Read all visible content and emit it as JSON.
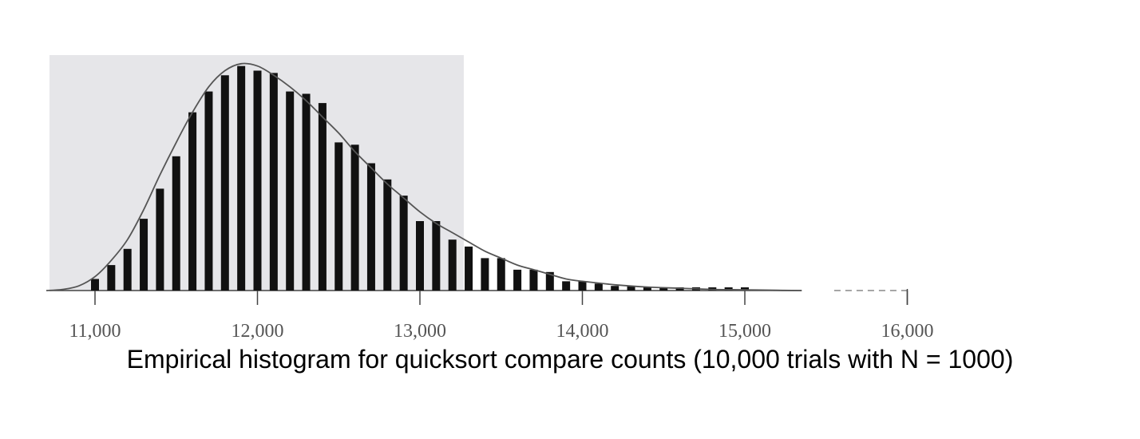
{
  "colors": {
    "highlight": "#e6e6e9",
    "bar": "#111111",
    "curve": "#555555",
    "axis": "#444444"
  },
  "chart_data": {
    "type": "bar",
    "xlabel": "",
    "ylabel": "",
    "xlim": [
      10750,
      16000
    ],
    "ylim": [
      0,
      100
    ],
    "xticks": [
      11000,
      12000,
      13000,
      14000,
      15000,
      16000
    ],
    "tick_labels": [
      "11,000",
      "12,000",
      "13,000",
      "14,000",
      "15,000",
      "16,000"
    ],
    "highlight_range": [
      10700,
      13270
    ],
    "bin_width": 100,
    "x": [
      11000,
      11100,
      11200,
      11300,
      11400,
      11500,
      11600,
      11700,
      11800,
      11900,
      12000,
      12100,
      12200,
      12300,
      12400,
      12500,
      12600,
      12700,
      12800,
      12900,
      13000,
      13100,
      13200,
      13300,
      13400,
      13500,
      13600,
      13700,
      13800,
      13900,
      14000,
      14100,
      14200,
      14300,
      14400,
      14500,
      14600,
      14700,
      14800,
      14900,
      15000
    ],
    "values": [
      5,
      11,
      18,
      31,
      44,
      58,
      77,
      86,
      93,
      97,
      95,
      94,
      86,
      85,
      81,
      64,
      63,
      55,
      48,
      41,
      30,
      30,
      22,
      19,
      14,
      14,
      9,
      9,
      8,
      4,
      4,
      3,
      2,
      2,
      1.5,
      1,
      1,
      0.5,
      0.5,
      0.5,
      0.5
    ],
    "curve": {
      "x": [
        10700,
        10800,
        10900,
        11000,
        11100,
        11200,
        11300,
        11400,
        11500,
        11600,
        11700,
        11800,
        11900,
        12000,
        12100,
        12200,
        12300,
        12400,
        12500,
        12600,
        12700,
        12800,
        12900,
        13000,
        13100,
        13200,
        13300,
        13400,
        13500,
        13600,
        13700,
        13800,
        13900,
        14000,
        14200,
        14400,
        14600,
        14800,
        15000,
        15200,
        15350
      ],
      "y": [
        0,
        0.5,
        2,
        6,
        13,
        22,
        35,
        50,
        64,
        77,
        88,
        95,
        98,
        97,
        93,
        88,
        82,
        75,
        68,
        60,
        53,
        46,
        40,
        34,
        29,
        25,
        21,
        17,
        14,
        11,
        9,
        7,
        5,
        4,
        2.5,
        1.5,
        1,
        0.5,
        0.3,
        0.1,
        0
      ]
    },
    "dashed_extension": [
      15550,
      16000
    ]
  },
  "caption": "Empirical histogram for quicksort compare counts (10,000 trials with N = 1000)"
}
